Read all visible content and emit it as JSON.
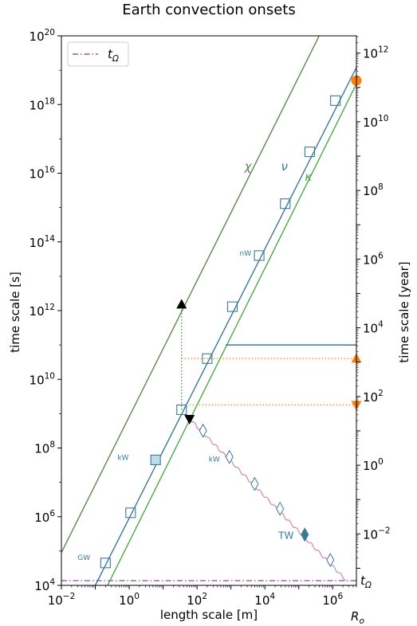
{
  "chart_data": {
    "type": "line",
    "title": "Earth convection onsets",
    "xlabel": "length scale [m]",
    "ylabel": "time scale [s]",
    "ylabel_right": "time scale [year]",
    "x_scale": "log",
    "y_scale": "log",
    "xlim": [
      0.01,
      5000000
    ],
    "ylim": [
      10000,
      1e+20
    ],
    "right_ylim_years": [
      0.000317,
      3170000000000.0
    ],
    "grid": false,
    "legend": {
      "placement": "top-left",
      "entries": [
        "t_Ω"
      ]
    },
    "x_ticks": [
      {
        "value": 0.01,
        "base": "10",
        "exp": "−2"
      },
      {
        "value": 1,
        "base": "10",
        "exp": "0"
      },
      {
        "value": 100,
        "base": "10",
        "exp": "2"
      },
      {
        "value": 10000,
        "base": "10",
        "exp": "4"
      },
      {
        "value": 1000000,
        "base": "10",
        "exp": "6"
      }
    ],
    "x_extra_label": {
      "value": 5000000,
      "base": "R",
      "sub": "o"
    },
    "y_ticks": [
      {
        "value": 10000,
        "base": "10",
        "exp": "4"
      },
      {
        "value": 1000000,
        "base": "10",
        "exp": "6"
      },
      {
        "value": 100000000,
        "base": "10",
        "exp": "8"
      },
      {
        "value": 10000000000,
        "base": "10",
        "exp": "10"
      },
      {
        "value": 1000000000000,
        "base": "10",
        "exp": "12"
      },
      {
        "value": 100000000000000,
        "base": "10",
        "exp": "14"
      },
      {
        "value": 1e+16,
        "base": "10",
        "exp": "16"
      },
      {
        "value": 1e+18,
        "base": "10",
        "exp": "18"
      },
      {
        "value": 1e+20,
        "base": "10",
        "exp": "20"
      }
    ],
    "y_ticks_right": [
      {
        "value": 0.01,
        "base": "10",
        "exp": "−2"
      },
      {
        "value": 1,
        "base": "10",
        "exp": "0"
      },
      {
        "value": 100,
        "base": "10",
        "exp": "2"
      },
      {
        "value": 10000,
        "base": "10",
        "exp": "4"
      },
      {
        "value": 1000000,
        "base": "10",
        "exp": "6"
      },
      {
        "value": 100000000,
        "base": "10",
        "exp": "8"
      },
      {
        "value": 10000000000,
        "base": "10",
        "exp": "10"
      },
      {
        "value": 1000000000000,
        "base": "10",
        "exp": "12"
      }
    ],
    "colors": {
      "chi": "#5a8a50",
      "kappa": "#4aaa4a",
      "nu": "#3a7a96",
      "t_omega": "#a050b0",
      "wiggle": "#d090b0",
      "orange": "#ff7f0e",
      "black": "#000000",
      "dotted_green": "#3a9a3a"
    },
    "series": [
      {
        "name": "χ",
        "x": [
          0.01,
          400000
        ],
        "y": [
          90000,
          1e+20
        ]
      },
      {
        "name": "ν",
        "x": [
          0.1,
          5000000
        ],
        "y": [
          10000,
          1.2e+19
        ]
      },
      {
        "name": "κ",
        "x": [
          0.23,
          5000000
        ],
        "y": [
          10000,
          4e+18
        ]
      }
    ],
    "t_omega": 13700,
    "nu_plateau": {
      "x_start": 700,
      "x_end": 5000000,
      "y": 100000000000
    },
    "squares": [
      {
        "x": 0.2,
        "y": 45000
      },
      {
        "x": 1.1,
        "y": 1300000
      },
      {
        "x": 6,
        "y": 45000000,
        "filled": true
      },
      {
        "x": 35,
        "y": 1300000000
      },
      {
        "x": 200,
        "y": 40000000000
      },
      {
        "x": 1100,
        "y": 1300000000000
      },
      {
        "x": 6800,
        "y": 40000000000000
      },
      {
        "x": 40000,
        "y": 1300000000000000
      },
      {
        "x": 210000,
        "y": 4.2e+16
      },
      {
        "x": 1200000,
        "y": 1.3e+18
      }
    ],
    "diamonds": [
      {
        "x": 150,
        "y": 320000000
      },
      {
        "x": 900,
        "y": 55000000
      },
      {
        "x": 5000,
        "y": 9000000
      },
      {
        "x": 28000,
        "y": 1700000
      },
      {
        "x": 150000,
        "y": 300000,
        "filled": true
      },
      {
        "x": 850000,
        "y": 55000
      }
    ],
    "wiggle": {
      "x_start": 45,
      "y_start": 950000000,
      "x_end": 2500000,
      "y_end": 14000,
      "steps": 22
    },
    "triangles": [
      {
        "x": 35,
        "y": 1500000000000,
        "dir": "up"
      },
      {
        "x": 60,
        "y": 700000000,
        "dir": "down"
      }
    ],
    "dotted_vertical": {
      "x": 35,
      "y_from": 1300000000,
      "y_to": 1500000000000
    },
    "dotted_orange": [
      {
        "x_start": 35,
        "y": 40000000000
      },
      {
        "x_start": 60,
        "y": 1800000000
      }
    ],
    "right_markers": [
      {
        "type": "circle",
        "y": 5e+18
      },
      {
        "type": "triangle-up",
        "y": 40000000000
      },
      {
        "type": "triangle-down",
        "y": 1800000000
      }
    ],
    "annotations": [
      {
        "id": "chi",
        "text": "χ",
        "x": 2500,
        "y": 1.2e+16,
        "size": 15,
        "color": "#5a8a50",
        "italic": true
      },
      {
        "id": "nu",
        "text": "ν",
        "x": 30000,
        "y": 1.2e+16,
        "size": 15,
        "color": "#3a7a96",
        "italic": true
      },
      {
        "id": "kappa",
        "text": "κ",
        "x": 150000,
        "y": 6000000000000000.0,
        "size": 15,
        "color": "#4aaa4a",
        "italic": true
      },
      {
        "id": "nW",
        "text": "nW",
        "x": 1800,
        "y": 40000000000000,
        "size": 9,
        "color": "#3a7a96",
        "italic": false
      },
      {
        "id": "kW_left",
        "text": "kW",
        "x": 0.45,
        "y": 45000000,
        "size": 9,
        "color": "#3a7a96",
        "italic": false
      },
      {
        "id": "kW_right",
        "text": "kW",
        "x": 220,
        "y": 40000000,
        "size": 9,
        "color": "#3a7a96",
        "italic": false
      },
      {
        "id": "GW",
        "text": "GW",
        "x": 0.03,
        "y": 55000,
        "size": 9,
        "color": "#3a7a96",
        "italic": false
      },
      {
        "id": "TW",
        "text": "TW",
        "x": 25000,
        "y": 230000,
        "size": 12,
        "color": "#3a7a96",
        "italic": false
      }
    ],
    "t_omega_label": {
      "base": "t",
      "sub": "Ω"
    }
  }
}
